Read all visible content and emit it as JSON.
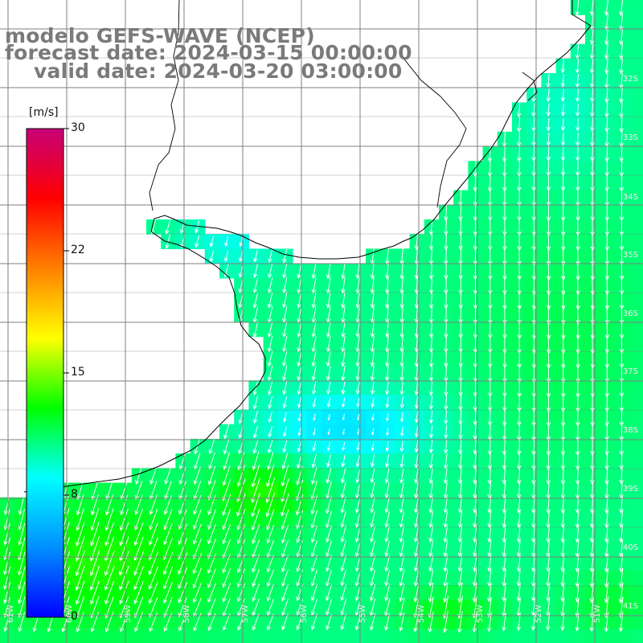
{
  "title": {
    "line1": "modelo GEFS-WAVE (NCEP)",
    "line2": "forecast date: 2024-03-15 00:00:00",
    "line3": "valid date: 2024-03-20 03:00:00"
  },
  "colorbar": {
    "unit": "[m/s]",
    "ticks": [
      "30",
      "22",
      "15",
      "8",
      "0"
    ],
    "tick_values": [
      30,
      22,
      15,
      8,
      0
    ],
    "colors": [
      "#0000ff",
      "#0090ff",
      "#00ffff",
      "#00ff00",
      "#ffff00",
      "#ff8000",
      "#ff0000",
      "#c80078"
    ]
  },
  "lat_labels": [
    "32S",
    "33S",
    "34S",
    "35S",
    "36S",
    "37S",
    "38S",
    "39S",
    "40S",
    "41S"
  ],
  "lon_labels": [
    "61W",
    "60W",
    "59W",
    "58W",
    "57W",
    "56W",
    "55W",
    "54W",
    "53W",
    "52W",
    "51W"
  ],
  "colors": {
    "grid": "#7f7f7f",
    "coast": "#000000",
    "arrows": "#ffffff",
    "title": "#7a7a7a"
  }
}
